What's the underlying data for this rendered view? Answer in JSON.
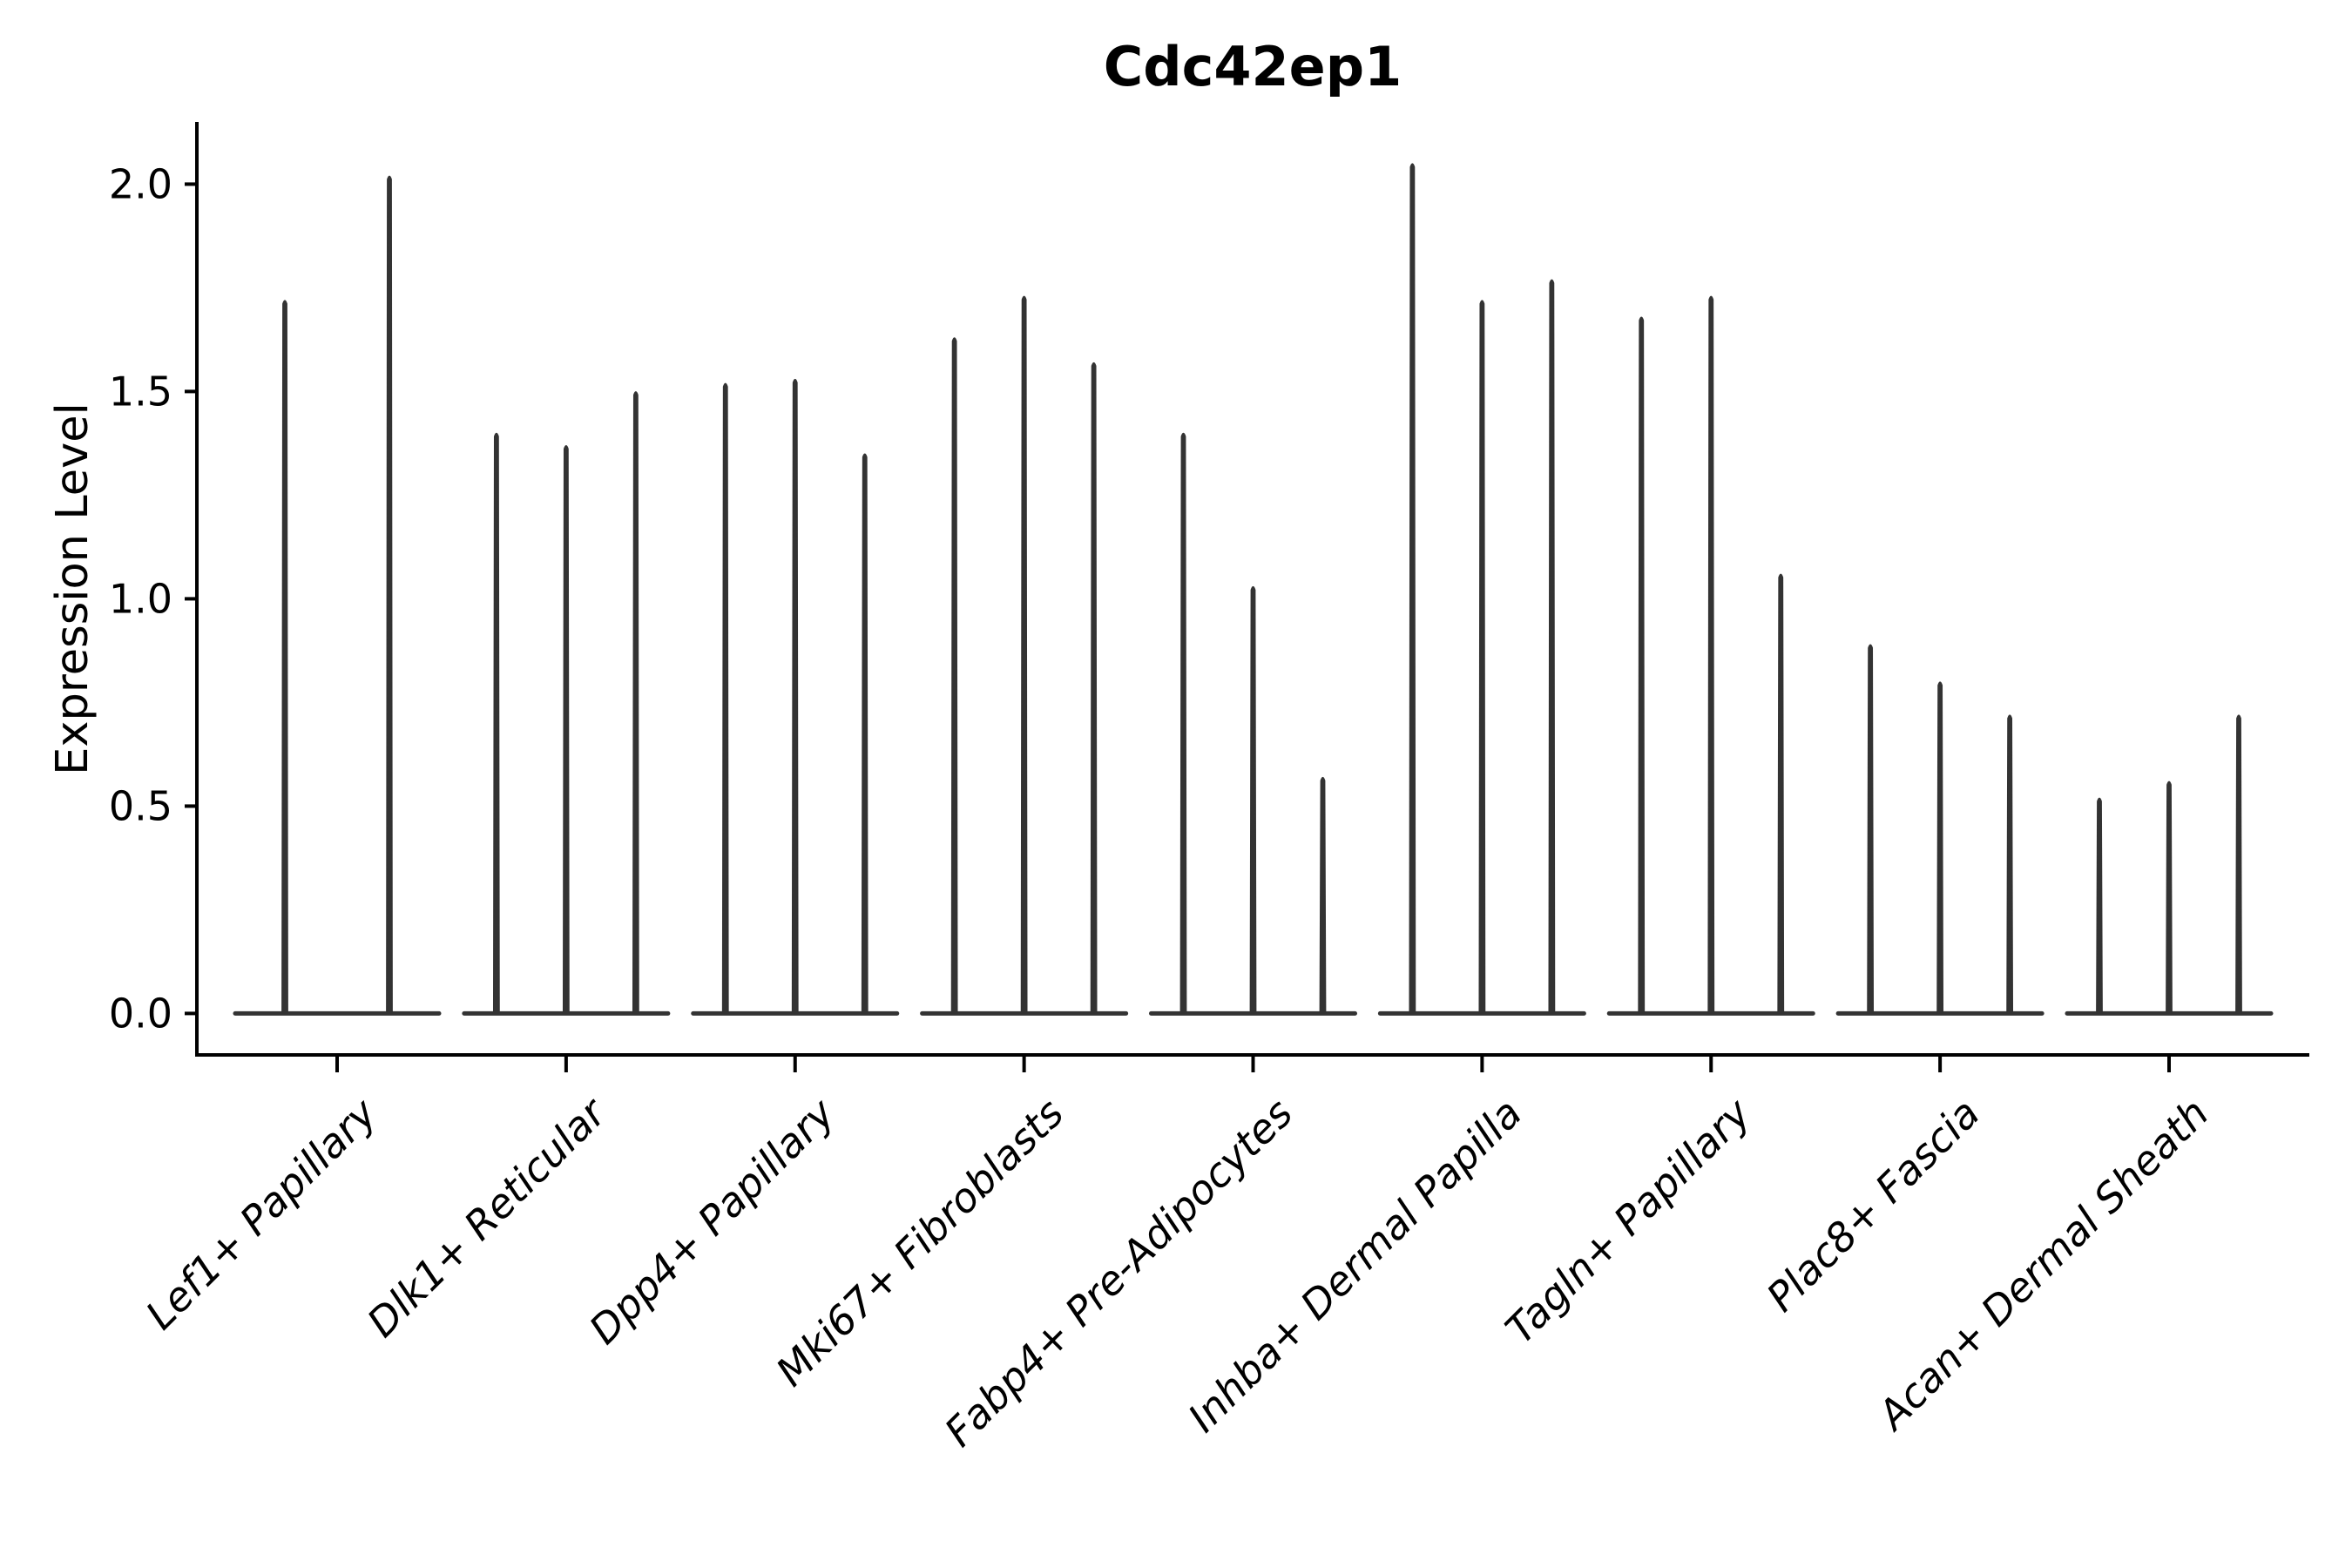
{
  "figure": {
    "background": "#ffffff"
  },
  "chart_data": {
    "type": "violin",
    "title": "Cdc42ep1",
    "ylabel": "Expression Level",
    "xlabel": "",
    "grid": false,
    "legend_position": "none",
    "axis_color": "#000000",
    "violin_color": "#333333",
    "ylim": [
      -0.1,
      2.15
    ],
    "yticks": [
      "0.0",
      "0.5",
      "1.0",
      "1.5",
      "2.0"
    ],
    "categories": [
      "Lef1+ Papillary",
      "Dlk1+ Reticular",
      "Dpp4+ Papillary",
      "Mki67+ Fibroblasts",
      "Fabp4+ Pre-Adipocytes",
      "Inhba+ Dermal Papilla",
      "Tagln+ Papillary",
      "Plac8+ Fascia",
      "Acan+ Dermal Sheath"
    ],
    "groups": [
      {
        "category": "Lef1+ Papillary",
        "violin_maxima": [
          1.72,
          2.02
        ]
      },
      {
        "category": "Dlk1+ Reticular",
        "violin_maxima": [
          1.4,
          1.37,
          1.5
        ]
      },
      {
        "category": "Dpp4+ Papillary",
        "violin_maxima": [
          1.52,
          1.53,
          1.35
        ]
      },
      {
        "category": "Mki67+ Fibroblasts",
        "violin_maxima": [
          1.63,
          1.73,
          1.57
        ]
      },
      {
        "category": "Fabp4+ Pre-Adipocytes",
        "violin_maxima": [
          1.4,
          1.03,
          0.57
        ]
      },
      {
        "category": "Inhba+ Dermal Papilla",
        "violin_maxima": [
          2.05,
          1.72,
          1.77
        ]
      },
      {
        "category": "Tagln+ Papillary",
        "violin_maxima": [
          1.68,
          1.73,
          1.06
        ]
      },
      {
        "category": "Plac8+ Fascia",
        "violin_maxima": [
          0.89,
          0.8,
          0.72
        ]
      },
      {
        "category": "Acan+ Dermal Sheath",
        "violin_maxima": [
          0.52,
          0.56,
          0.72
        ]
      }
    ]
  }
}
